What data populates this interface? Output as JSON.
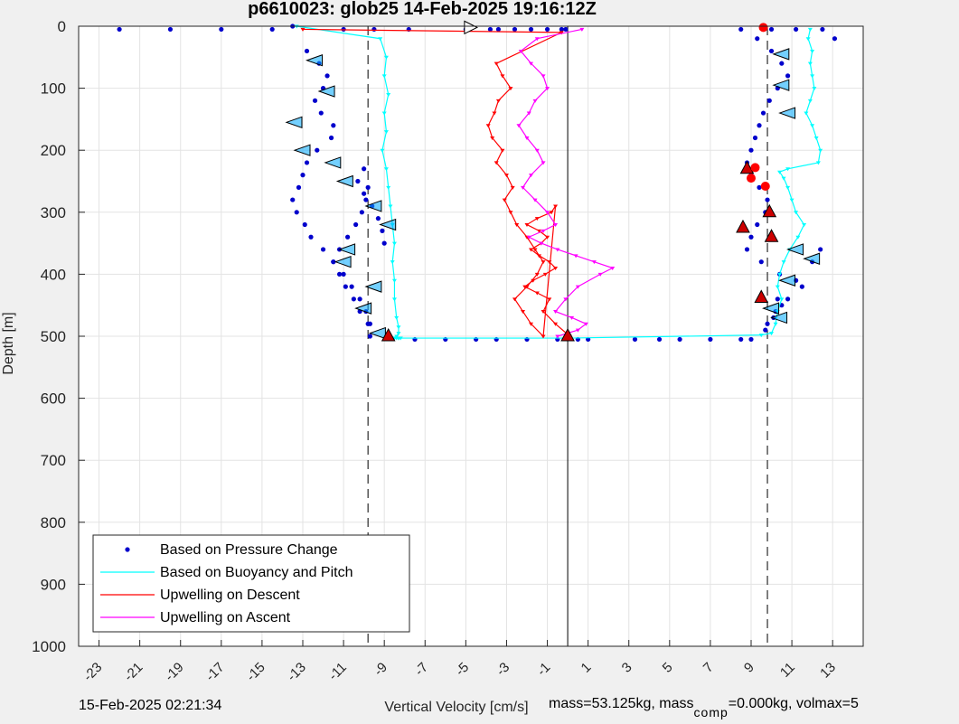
{
  "chart_data": {
    "type": "scatter",
    "title": "p6610023: glob25 14-Feb-2025 19:16:12Z",
    "xlabel": "Vertical Velocity [cm/s]",
    "ylabel": "Depth [m]",
    "xlim": [
      -24,
      14.5
    ],
    "ylim": [
      0,
      1000
    ],
    "y_reversed": true,
    "grid": true,
    "x_ticks": [
      -23,
      -21,
      -19,
      -17,
      -15,
      -13,
      -11,
      -9,
      -7,
      -5,
      -3,
      -1,
      1,
      3,
      5,
      7,
      9,
      11,
      13
    ],
    "y_ticks": [
      0,
      100,
      200,
      300,
      400,
      500,
      600,
      700,
      800,
      900,
      1000
    ],
    "vertical_lines": [
      {
        "x": -9.8,
        "style": "dashed"
      },
      {
        "x": 0,
        "style": "solid"
      },
      {
        "x": 9.8,
        "style": "dashed"
      }
    ],
    "legend_position": "bottom-left",
    "series": [
      {
        "name": "Based on Pressure Change",
        "style": "dots",
        "color": "#0000cc",
        "x": [
          -13.5,
          -12.8,
          -12.2,
          -11.8,
          -12.0,
          -12.4,
          -12.1,
          -11.5,
          -11.6,
          -12.3,
          -12.8,
          -13.0,
          -13.2,
          -13.5,
          -13.3,
          -12.9,
          -12.6,
          -12.0,
          -11.5,
          -11.2,
          -10.9,
          -10.5,
          -10.2,
          -9.8,
          -9.7,
          -9.8,
          -9.9,
          -10.1,
          -10.4,
          -10.8,
          -11.2,
          -11.5,
          -11.0,
          -10.6,
          -10.2,
          -9.9,
          -9.7,
          -10.0,
          -10.3,
          -10.0,
          -9.6,
          -9.3,
          -9.1,
          -9.0,
          -22.0,
          -19.5,
          -17.0,
          -14.5,
          -11.0,
          -9.5,
          -7.8,
          -5.0,
          -3.8,
          -3.4,
          -2.6,
          -1.8,
          -1.0,
          -0.3,
          -0.1,
          -7.5,
          -6.0,
          -4.5,
          -3.5,
          -2.0,
          -0.5,
          0.5,
          1.0,
          3.3,
          4.5,
          5.5,
          7.0,
          8.5,
          9.0,
          9.3,
          10.0,
          10.5,
          10.8,
          10.3,
          9.9,
          9.6,
          9.4,
          9.2,
          9.0,
          8.8,
          9.0,
          9.4,
          9.8,
          9.7,
          9.3,
          9.0,
          8.8,
          9.5,
          10.4,
          11.2,
          12.0,
          12.4,
          11.5,
          10.8,
          10.2,
          9.8,
          9.7,
          10.1,
          10.5,
          10.3,
          8.5,
          10.0,
          11.2,
          12.5,
          13.1
        ],
        "y": [
          0,
          40,
          60,
          80,
          100,
          120,
          140,
          160,
          180,
          200,
          220,
          240,
          260,
          280,
          300,
          320,
          340,
          360,
          380,
          400,
          420,
          440,
          460,
          480,
          500,
          260,
          280,
          300,
          320,
          340,
          360,
          380,
          400,
          420,
          440,
          460,
          480,
          230,
          250,
          270,
          290,
          310,
          330,
          350,
          5,
          5,
          5,
          5,
          5,
          5,
          5,
          5,
          5,
          5,
          5,
          5,
          5,
          5,
          5,
          505,
          505,
          505,
          505,
          505,
          505,
          505,
          505,
          505,
          505,
          505,
          505,
          505,
          505,
          20,
          40,
          60,
          80,
          100,
          120,
          140,
          160,
          180,
          200,
          220,
          240,
          260,
          280,
          300,
          320,
          340,
          360,
          380,
          400,
          410,
          380,
          360,
          420,
          440,
          460,
          480,
          490,
          470,
          450,
          440,
          5,
          5,
          5,
          5,
          20
        ]
      },
      {
        "name": "Based on Buoyancy and Pitch",
        "style": "line-markers",
        "color": "#00ffff",
        "x": [
          -13.3,
          -9.2,
          -8.9,
          -9.0,
          -8.8,
          -9.0,
          -8.9,
          -9.1,
          -8.9,
          -8.8,
          -8.7,
          -8.6,
          -8.5,
          -8.6,
          -8.5,
          -8.5,
          -8.4,
          -8.3,
          -8.3,
          -8.4,
          -8.5,
          -8.3,
          -8.4,
          -8.3,
          -8.2,
          -8.3,
          0.0,
          9.5,
          10.0,
          10.2,
          10.3,
          10.5,
          10.3,
          10.4,
          10.6,
          10.9,
          11.3,
          11.6,
          11.2,
          11.0,
          10.8,
          10.6,
          10.4,
          10.8,
          12.3,
          12.4,
          12.2,
          12.0,
          11.7,
          11.9,
          12.1,
          12.0,
          11.9,
          12.0,
          11.8,
          11.9
        ],
        "y": [
          0,
          20,
          50,
          80,
          110,
          140,
          170,
          200,
          230,
          260,
          290,
          320,
          350,
          380,
          410,
          440,
          470,
          485,
          495,
          500,
          503,
          503,
          503,
          503,
          503,
          503,
          503,
          498,
          495,
          480,
          460,
          440,
          420,
          400,
          380,
          360,
          340,
          320,
          300,
          280,
          260,
          245,
          235,
          230,
          220,
          200,
          180,
          160,
          140,
          120,
          100,
          80,
          60,
          40,
          20,
          5
        ]
      },
      {
        "name": "Upwelling on Descent",
        "style": "line-markers",
        "color": "#ff0000",
        "x": [
          -13.0,
          -0.3,
          -3.5,
          -3.2,
          -2.8,
          -3.4,
          -3.6,
          -3.9,
          -3.7,
          -3.2,
          -3.5,
          -3.0,
          -2.7,
          -3.1,
          -2.8,
          -2.5,
          -2.0,
          -1.6,
          -1.2,
          -1.5,
          -2.0,
          -2.6,
          -2.2,
          -1.8,
          -1.2,
          -0.6,
          -0.8,
          -1.5,
          -2.0,
          -1.4,
          -1.0,
          -1.3,
          -1.8,
          -1.4,
          -0.9,
          -0.6,
          -1.1,
          -1.7,
          -2.1,
          -1.5,
          -0.9,
          -1.2,
          -0.6,
          0.1
        ],
        "y": [
          5,
          10,
          60,
          80,
          100,
          120,
          140,
          160,
          180,
          200,
          220,
          240,
          260,
          280,
          300,
          320,
          340,
          360,
          380,
          400,
          420,
          440,
          460,
          480,
          500,
          290,
          300,
          310,
          320,
          330,
          340,
          350,
          360,
          370,
          380,
          390,
          400,
          410,
          420,
          430,
          440,
          460,
          480,
          500
        ]
      },
      {
        "name": "Upwelling on Ascent",
        "style": "line-markers",
        "color": "#ff00ff",
        "x": [
          0.7,
          -1.5,
          -2.3,
          -1.8,
          -1.2,
          -1.0,
          -1.6,
          -1.9,
          -2.4,
          -2.0,
          -1.5,
          -1.2,
          -1.8,
          -2.2,
          -1.6,
          -1.0,
          -0.6,
          -1.2,
          -1.9,
          -1.3,
          -0.5,
          0.4,
          1.3,
          2.2,
          1.6,
          0.5,
          -0.1,
          -0.6,
          0.2,
          0.9,
          0.5,
          -0.5
        ],
        "y": [
          5,
          20,
          40,
          60,
          80,
          100,
          120,
          140,
          160,
          180,
          200,
          220,
          240,
          260,
          280,
          300,
          320,
          330,
          340,
          350,
          360,
          370,
          380,
          390,
          400,
          420,
          440,
          460,
          470,
          480,
          490,
          500
        ]
      }
    ],
    "special_markers": [
      {
        "x": -4.8,
        "y": 2,
        "shape": "triangle-right",
        "color": "#ffffff"
      },
      {
        "x": -8.8,
        "y": 500,
        "shape": "triangle-up",
        "color": "#cc0000"
      },
      {
        "x": 0.0,
        "y": 500,
        "shape": "triangle-up",
        "color": "#cc0000"
      },
      {
        "x": 8.8,
        "y": 230,
        "shape": "triangle-up",
        "color": "#cc0000"
      },
      {
        "x": 8.6,
        "y": 325,
        "shape": "triangle-up",
        "color": "#cc0000"
      },
      {
        "x": 9.5,
        "y": 438,
        "shape": "triangle-up",
        "color": "#cc0000"
      },
      {
        "x": 9.9,
        "y": 300,
        "shape": "triangle-up",
        "color": "#cc0000"
      },
      {
        "x": 10.0,
        "y": 340,
        "shape": "triangle-up",
        "color": "#cc0000"
      },
      {
        "x": 9.6,
        "y": 2,
        "shape": "circle",
        "color": "#ff0000"
      },
      {
        "x": 9.2,
        "y": 228,
        "shape": "circle",
        "color": "#ff0000"
      },
      {
        "x": 9.0,
        "y": 245,
        "shape": "circle",
        "color": "#ff0000"
      },
      {
        "x": 9.7,
        "y": 258,
        "shape": "circle",
        "color": "#ff0000"
      }
    ],
    "direction_markers": [
      {
        "x": -12.4,
        "y": 55
      },
      {
        "x": -11.8,
        "y": 105
      },
      {
        "x": -13.4,
        "y": 155
      },
      {
        "x": -13.0,
        "y": 200
      },
      {
        "x": -11.5,
        "y": 220
      },
      {
        "x": -10.9,
        "y": 250
      },
      {
        "x": -9.5,
        "y": 290
      },
      {
        "x": -8.8,
        "y": 320
      },
      {
        "x": -10.8,
        "y": 360
      },
      {
        "x": -11.0,
        "y": 380
      },
      {
        "x": -9.5,
        "y": 420
      },
      {
        "x": -10.0,
        "y": 455
      },
      {
        "x": -9.3,
        "y": 495
      },
      {
        "x": 10.5,
        "y": 45
      },
      {
        "x": 10.5,
        "y": 95
      },
      {
        "x": 10.8,
        "y": 140
      },
      {
        "x": 11.2,
        "y": 360
      },
      {
        "x": 12.0,
        "y": 375
      },
      {
        "x": 10.8,
        "y": 410
      },
      {
        "x": 10.0,
        "y": 455
      },
      {
        "x": 10.4,
        "y": 470
      }
    ]
  },
  "footer": {
    "timestamp": "15-Feb-2025 02:21:34",
    "mass_prefix": "mass=53.125kg, mass",
    "mass_sub": "comp",
    "mass_suffix": "=0.000kg, volmax=5"
  }
}
